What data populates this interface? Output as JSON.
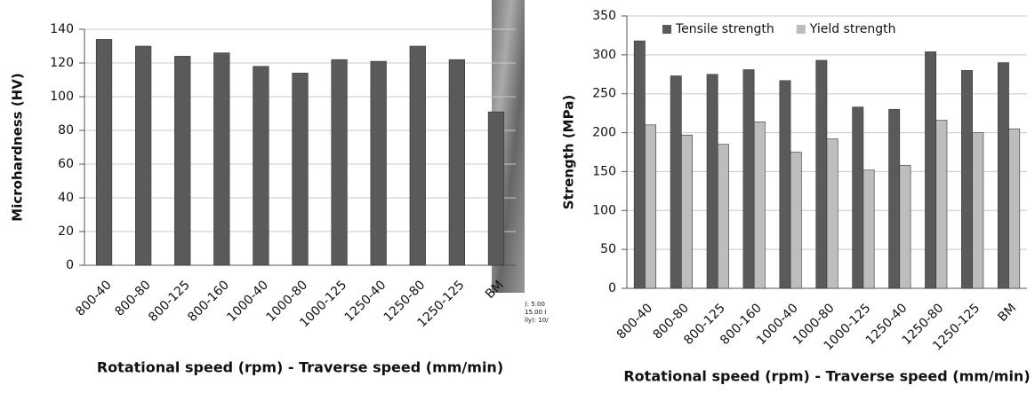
{
  "chart_data": [
    {
      "type": "bar",
      "x_label": "Rotational speed (rpm) - Traverse speed (mm/min)",
      "y_label": "Microhardness  (HV)",
      "categories": [
        "800-40",
        "800-80",
        "800-125",
        "800-160",
        "1000-40",
        "1000-80",
        "1000-125",
        "1250-40",
        "1250-80",
        "1250-125",
        "BM"
      ],
      "series": [
        {
          "name": null,
          "color": "#5a5a5a",
          "values": [
            134,
            130,
            124,
            126,
            118,
            114,
            122,
            121,
            130,
            122,
            91
          ]
        }
      ],
      "ylim": [
        0,
        140
      ],
      "yticks": [
        0,
        20,
        40,
        60,
        80,
        100,
        120,
        140
      ],
      "grid": true
    },
    {
      "type": "bar",
      "x_label": "Rotational speed (rpm) - Traverse speed (mm/min)",
      "y_label": "Strength (MPa)",
      "categories": [
        "800-40",
        "800-80",
        "800-125",
        "800-160",
        "1000-40",
        "1000-80",
        "1000-125",
        "1250-40",
        "1250-80",
        "1250-125",
        "BM"
      ],
      "series": [
        {
          "name": "Tensile strength",
          "color": "#5a5a5a",
          "values": [
            318,
            273,
            275,
            281,
            267,
            293,
            233,
            230,
            304,
            280,
            290
          ]
        },
        {
          "name": "Yield strength",
          "color": "#bdbdbd",
          "values": [
            210,
            197,
            185,
            214,
            175,
            192,
            152,
            158,
            216,
            200,
            205
          ]
        }
      ],
      "ylim": [
        0,
        350
      ],
      "yticks": [
        0,
        50,
        100,
        150,
        200,
        250,
        300,
        350
      ],
      "grid": true,
      "legend": "top-left"
    }
  ],
  "image_fragment_texts": [
    "): 5.00",
    "15.00 I",
    "lly): 10/"
  ]
}
